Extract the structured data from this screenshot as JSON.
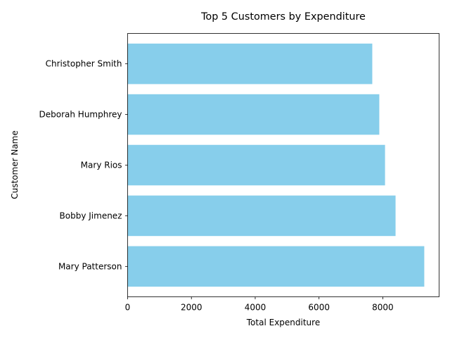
{
  "chart_data": {
    "type": "bar",
    "orientation": "horizontal",
    "title": "Top 5 Customers by Expenditure",
    "xlabel": "Total Expenditure",
    "ylabel": "Customer Name",
    "categories": [
      "Mary Patterson",
      "Bobby Jimenez",
      "Mary Rios",
      "Deborah Humphrey",
      "Christopher Smith"
    ],
    "values": [
      9300,
      8400,
      8070,
      7890,
      7670
    ],
    "xlim": [
      0,
      9765
    ],
    "xticks": [
      0,
      2000,
      4000,
      6000,
      8000
    ],
    "grid": false,
    "legend": "none",
    "bar_color": "#87ceeb"
  }
}
